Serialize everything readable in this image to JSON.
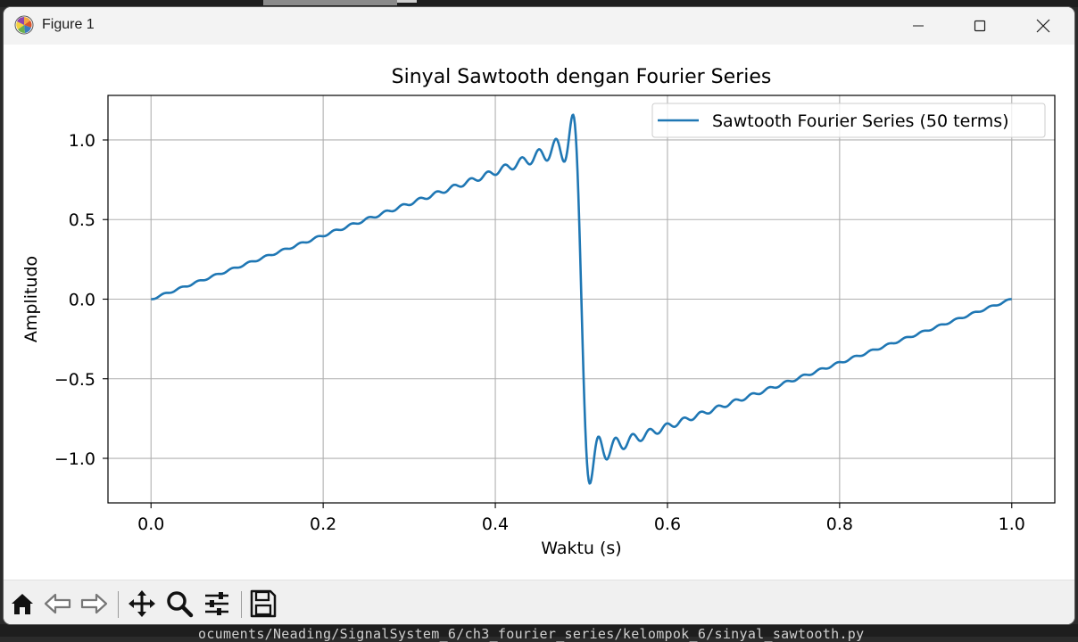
{
  "window": {
    "title": "Figure 1",
    "terminal_text": "ocuments/Neading/SignalSystem_6/ch3_fourier_series/kelompok_6/sinyal_sawtooth.py"
  },
  "toolbar": {
    "buttons": [
      "home-icon",
      "back-icon",
      "forward-icon",
      "pan-icon",
      "zoom-icon",
      "configure-icon",
      "save-icon"
    ]
  },
  "colors": {
    "line": "#1f77b4",
    "grid": "#b0b0b0"
  },
  "chart_data": {
    "type": "line",
    "title": "Sinyal Sawtooth dengan Fourier Series",
    "xlabel": "Waktu (s)",
    "ylabel": "Amplitudo",
    "xlim": [
      -0.05,
      1.05
    ],
    "ylim": [
      -1.28,
      1.28
    ],
    "xticks": [
      "0.0",
      "0.2",
      "0.4",
      "0.6",
      "0.8",
      "1.0"
    ],
    "xtick_values": [
      0,
      0.2,
      0.4,
      0.6,
      0.8,
      1.0
    ],
    "yticks": [
      "−1.0",
      "−0.5",
      "0.0",
      "0.5",
      "1.0"
    ],
    "ytick_values": [
      -1.0,
      -0.5,
      0.0,
      0.5,
      1.0
    ],
    "grid": true,
    "legend_position": "top-right",
    "series": [
      {
        "name": "Sawtooth Fourier Series (50 terms)",
        "function": "sum_{n=1..50} (-1)^(n+1) * 2/(n*pi) * sin(2*pi*n*t)",
        "x_range": [
          0,
          1
        ],
        "samples": 1000
      }
    ]
  }
}
